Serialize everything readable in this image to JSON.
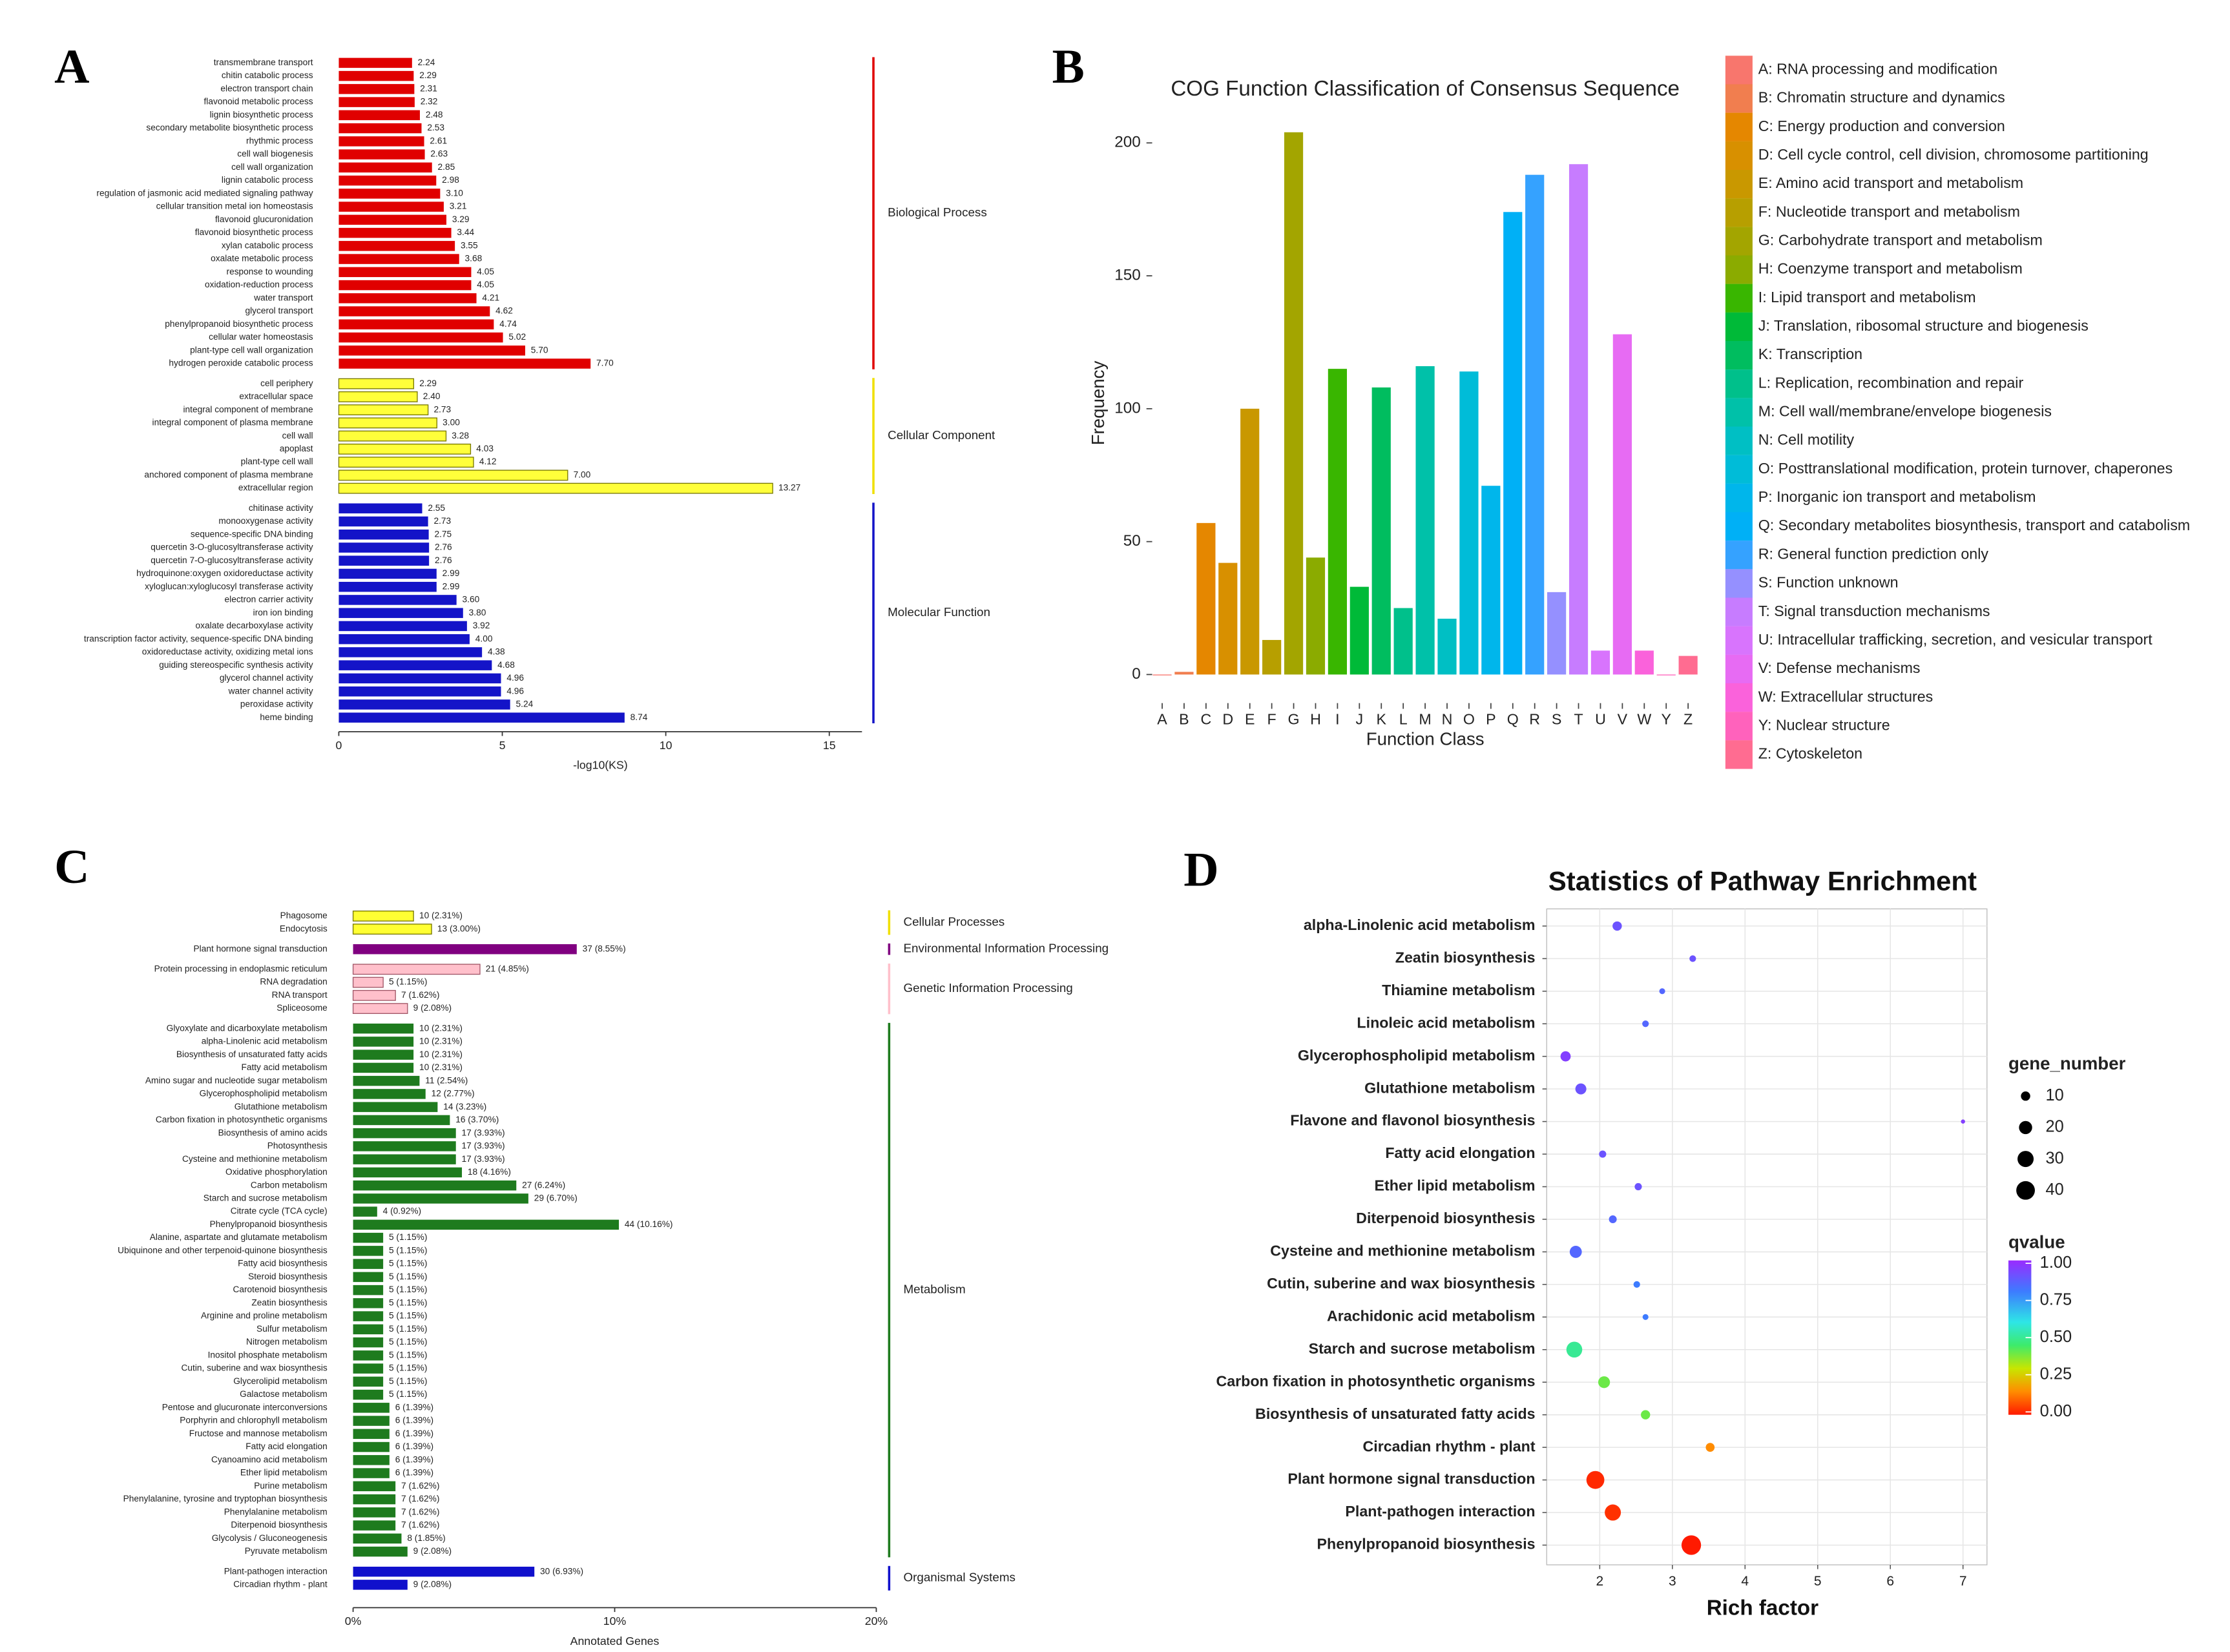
{
  "chart_data": [
    {
      "type": "hbar",
      "panel_label": "A",
      "xlabel": "-log10(KS)",
      "xlim": [
        0,
        16
      ],
      "xticks": [
        0,
        5,
        10,
        15
      ],
      "series": [
        {
          "name": "Biological Process",
          "color": "#E00000",
          "categories": [
            "transmembrane transport",
            "chitin catabolic process",
            "electron transport chain",
            "flavonoid metabolic process",
            "lignin biosynthetic process",
            "secondary metabolite biosynthetic process",
            "rhythmic process",
            "cell wall biogenesis",
            "cell wall organization",
            "lignin catabolic process",
            "regulation of jasmonic acid mediated signaling pathway",
            "cellular transition metal ion homeostasis",
            "flavonoid glucuronidation",
            "flavonoid biosynthetic process",
            "xylan catabolic process",
            "oxalate metabolic process",
            "response to wounding",
            "oxidation-reduction process",
            "water transport",
            "glycerol transport",
            "phenylpropanoid biosynthetic process",
            "cellular water homeostasis",
            "plant-type cell wall organization",
            "hydrogen peroxide catabolic process"
          ],
          "values": [
            2.24,
            2.29,
            2.31,
            2.32,
            2.48,
            2.53,
            2.61,
            2.63,
            2.85,
            2.98,
            3.1,
            3.21,
            3.29,
            3.44,
            3.55,
            3.68,
            4.05,
            4.05,
            4.21,
            4.62,
            4.74,
            5.02,
            5.7,
            7.7
          ],
          "value_labels": [
            "2.24",
            "2.29",
            "2.31",
            "2.32",
            "2.48",
            "2.53",
            "2.61",
            "2.63",
            "2.85",
            "2.98",
            "3.10",
            "3.21",
            "3.29",
            "3.44",
            "3.55",
            "3.68",
            "4.05",
            "4.05",
            "4.21",
            "4.62",
            "4.74",
            "5.02",
            "5.70",
            "7.70"
          ]
        },
        {
          "name": "Cellular Component",
          "color": "#FFFF3A",
          "edgecolor": "#777700",
          "categories": [
            "cell periphery",
            "extracellular space",
            "integral component of membrane",
            "integral component of plasma membrane",
            "cell wall",
            "apoplast",
            "plant-type cell wall",
            "anchored component of plasma membrane",
            "extracellular region"
          ],
          "values": [
            2.29,
            2.4,
            2.73,
            3.0,
            3.28,
            4.03,
            4.12,
            7.0,
            13.27
          ],
          "value_labels": [
            "2.29",
            "2.40",
            "2.73",
            "3.00",
            "3.28",
            "4.03",
            "4.12",
            "7.00",
            "13.27"
          ]
        },
        {
          "name": "Molecular Function",
          "color": "#1414C8",
          "categories": [
            "chitinase activity",
            "monooxygenase activity",
            "sequence-specific DNA binding",
            "quercetin 3-O-glucosyltransferase activity",
            "quercetin 7-O-glucosyltransferase activity",
            "hydroquinone:oxygen oxidoreductase activity",
            "xyloglucan:xyloglucosyl transferase activity",
            "electron carrier activity",
            "iron ion binding",
            "oxalate decarboxylase activity",
            "transcription factor activity, sequence-specific DNA binding",
            "oxidoreductase activity, oxidizing metal ions",
            "guiding stereospecific synthesis activity",
            "glycerol channel activity",
            "water channel activity",
            "peroxidase activity",
            "heme binding"
          ],
          "values": [
            2.55,
            2.73,
            2.75,
            2.76,
            2.76,
            2.99,
            2.99,
            3.6,
            3.8,
            3.92,
            4.0,
            4.38,
            4.68,
            4.96,
            4.96,
            5.24,
            8.74
          ],
          "value_labels": [
            "2.55",
            "2.73",
            "2.75",
            "2.76",
            "2.76",
            "2.99",
            "2.99",
            "3.60",
            "3.80",
            "3.92",
            "4.00",
            "4.38",
            "4.68",
            "4.96",
            "4.96",
            "5.24",
            "8.74"
          ]
        }
      ]
    },
    {
      "type": "bar",
      "panel_label": "B",
      "title": "COG Function Classification of Consensus Sequence",
      "xlabel": "Function Class",
      "ylabel": "Frequency",
      "categories": [
        "A",
        "B",
        "C",
        "D",
        "E",
        "F",
        "G",
        "H",
        "I",
        "J",
        "K",
        "L",
        "M",
        "N",
        "O",
        "P",
        "Q",
        "R",
        "S",
        "T",
        "U",
        "V",
        "W",
        "Y",
        "Z"
      ],
      "values": [
        0,
        1,
        57,
        42,
        100,
        13,
        204,
        44,
        115,
        33,
        108,
        25,
        116,
        21,
        114,
        71,
        174,
        188,
        31,
        192,
        9,
        128,
        9,
        0,
        7
      ],
      "colors": [
        "#F8766D",
        "#F17E4F",
        "#E58700",
        "#D89000",
        "#C99800",
        "#B79F00",
        "#A3A500",
        "#8BAB00",
        "#39B600",
        "#00BA38",
        "#00BD5F",
        "#00C08B",
        "#00C1A9",
        "#00BFC4",
        "#00BCD8",
        "#00B6EB",
        "#00B0F6",
        "#35A2FF",
        "#9590FF",
        "#C77CFF",
        "#D874FD",
        "#E76BF3",
        "#FA62DB",
        "#FF62BC",
        "#FF6C91"
      ],
      "legend": [
        "A: RNA processing and modification",
        "B: Chromatin structure and dynamics",
        "C: Energy production and conversion",
        "D: Cell cycle control, cell division, chromosome partitioning",
        "E: Amino acid transport and metabolism",
        "F: Nucleotide transport and metabolism",
        "G: Carbohydrate transport and metabolism",
        "H: Coenzyme transport and metabolism",
        "I: Lipid transport and metabolism",
        "J: Translation, ribosomal structure and biogenesis",
        "K: Transcription",
        "L: Replication, recombination and repair",
        "M: Cell wall/membrane/envelope biogenesis",
        "N: Cell motility",
        "O: Posttranslational modification, protein turnover, chaperones",
        "P: Inorganic ion transport and metabolism",
        "Q: Secondary metabolites biosynthesis, transport and catabolism",
        "R: General function prediction only",
        "S: Function unknown",
        "T: Signal transduction mechanisms",
        "U: Intracellular trafficking, secretion, and vesicular transport",
        "V: Defense mechanisms",
        "W: Extracellular structures",
        "Y: Nuclear structure",
        "Z: Cytoskeleton"
      ],
      "ylim": [
        -10,
        215
      ],
      "yticks": [
        0,
        50,
        100,
        150,
        200
      ]
    },
    {
      "type": "hbar",
      "panel_label": "C",
      "xlabel": "Annotated Genes",
      "xlim": [
        0,
        20
      ],
      "xticks": [
        {
          "value": 0,
          "label": "0%"
        },
        {
          "value": 10,
          "label": "10%"
        },
        {
          "value": 20,
          "label": "20%"
        }
      ],
      "series": [
        {
          "name": "Cellular Processes",
          "color": "#FFFF33",
          "edgecolor": "#777700",
          "categories": [
            "Phagosome",
            "Endocytosis"
          ],
          "values": [
            2.31,
            3.0
          ],
          "value_labels": [
            "10 (2.31%)",
            "13 (3.00%)"
          ]
        },
        {
          "name": "Environmental Information Processing",
          "color": "#800080",
          "categories": [
            "Plant hormone signal transduction"
          ],
          "values": [
            8.55
          ],
          "value_labels": [
            "37 (8.55%)"
          ]
        },
        {
          "name": "Genetic Information Processing",
          "color": "#FFC0CB",
          "edgecolor": "#A05566",
          "categories": [
            "Protein processing in endoplasmic reticulum",
            "RNA degradation",
            "RNA transport",
            "Spliceosome"
          ],
          "values": [
            4.85,
            1.15,
            1.62,
            2.08
          ],
          "value_labels": [
            "21 (4.85%)",
            "5 (1.15%)",
            "7 (1.62%)",
            "9 (2.08%)"
          ]
        },
        {
          "name": "Metabolism",
          "color": "#1E7B1E",
          "categories": [
            "Glyoxylate and dicarboxylate metabolism",
            "alpha-Linolenic acid metabolism",
            "Biosynthesis of unsaturated fatty acids",
            "Fatty acid metabolism",
            "Amino sugar and nucleotide sugar metabolism",
            "Glycerophospholipid metabolism",
            "Glutathione metabolism",
            "Carbon fixation in photosynthetic organisms",
            "Biosynthesis of amino acids",
            "Photosynthesis",
            "Cysteine and methionine metabolism",
            "Oxidative phosphorylation",
            "Carbon metabolism",
            "Starch and sucrose metabolism",
            "Citrate cycle (TCA cycle)",
            "Phenylpropanoid biosynthesis",
            "Alanine, aspartate and glutamate metabolism",
            "Ubiquinone and other terpenoid-quinone biosynthesis",
            "Fatty acid biosynthesis",
            "Steroid biosynthesis",
            "Carotenoid biosynthesis",
            "Zeatin biosynthesis",
            "Arginine and proline metabolism",
            "Sulfur metabolism",
            "Nitrogen metabolism",
            "Inositol phosphate metabolism",
            "Cutin, suberine and wax biosynthesis",
            "Glycerolipid metabolism",
            "Galactose metabolism",
            "Pentose and glucuronate interconversions",
            "Porphyrin and chlorophyll metabolism",
            "Fructose and mannose metabolism",
            "Fatty acid elongation",
            "Cyanoamino acid metabolism",
            "Ether lipid metabolism",
            "Purine metabolism",
            "Phenylalanine, tyrosine and tryptophan biosynthesis",
            "Phenylalanine metabolism",
            "Diterpenoid biosynthesis",
            "Glycolysis / Gluconeogenesis",
            "Pyruvate metabolism"
          ],
          "values": [
            2.31,
            2.31,
            2.31,
            2.31,
            2.54,
            2.77,
            3.23,
            3.7,
            3.93,
            3.93,
            3.93,
            4.16,
            6.24,
            6.7,
            0.92,
            10.16,
            1.15,
            1.15,
            1.15,
            1.15,
            1.15,
            1.15,
            1.15,
            1.15,
            1.15,
            1.15,
            1.15,
            1.15,
            1.15,
            1.39,
            1.39,
            1.39,
            1.39,
            1.39,
            1.39,
            1.62,
            1.62,
            1.62,
            1.62,
            1.85,
            2.08
          ],
          "value_labels": [
            "10 (2.31%)",
            "10 (2.31%)",
            "10 (2.31%)",
            "10 (2.31%)",
            "11 (2.54%)",
            "12 (2.77%)",
            "14 (3.23%)",
            "16 (3.70%)",
            "17 (3.93%)",
            "17 (3.93%)",
            "17 (3.93%)",
            "18 (4.16%)",
            "27 (6.24%)",
            "29 (6.70%)",
            "4 (0.92%)",
            "44 (10.16%)",
            "5 (1.15%)",
            "5 (1.15%)",
            "5 (1.15%)",
            "5 (1.15%)",
            "5 (1.15%)",
            "5 (1.15%)",
            "5 (1.15%)",
            "5 (1.15%)",
            "5 (1.15%)",
            "5 (1.15%)",
            "5 (1.15%)",
            "5 (1.15%)",
            "5 (1.15%)",
            "6 (1.39%)",
            "6 (1.39%)",
            "6 (1.39%)",
            "6 (1.39%)",
            "6 (1.39%)",
            "6 (1.39%)",
            "7 (1.62%)",
            "7 (1.62%)",
            "7 (1.62%)",
            "7 (1.62%)",
            "8 (1.85%)",
            "9 (2.08%)"
          ]
        },
        {
          "name": "Organismal Systems",
          "color": "#1010CC",
          "categories": [
            "Plant-pathogen interaction",
            "Circadian rhythm - plant"
          ],
          "values": [
            6.93,
            2.08
          ],
          "value_labels": [
            "30 (6.93%)",
            "9 (2.08%)"
          ]
        }
      ]
    },
    {
      "type": "bubble",
      "panel_label": "D",
      "title": "Statistics of Pathway Enrichment",
      "xlabel": "Rich factor",
      "categories": [
        "alpha-Linolenic acid metabolism",
        "Zeatin biosynthesis",
        "Thiamine metabolism",
        "Linoleic acid metabolism",
        "Glycerophospholipid metabolism",
        "Glutathione metabolism",
        "Flavone and flavonol biosynthesis",
        "Fatty acid elongation",
        "Ether lipid metabolism",
        "Diterpenoid biosynthesis",
        "Cysteine and methionine metabolism",
        "Cutin, suberine and wax biosynthesis",
        "Arachidonic acid metabolism",
        "Starch and sucrose metabolism",
        "Carbon fixation in photosynthetic organisms",
        "Biosynthesis of unsaturated fatty acids",
        "Circadian rhythm - plant",
        "Plant hormone signal transduction",
        "Plant-pathogen interaction",
        "Phenylpropanoid biosynthesis"
      ],
      "values": [
        2.24,
        3.28,
        2.86,
        2.63,
        1.53,
        1.74,
        7.0,
        2.04,
        2.53,
        2.18,
        1.67,
        2.51,
        2.63,
        1.65,
        2.06,
        2.63,
        3.52,
        1.94,
        2.18,
        3.26
      ],
      "sizes": [
        10,
        5,
        4,
        5,
        12,
        14,
        2,
        6,
        6,
        7,
        17,
        5,
        4,
        29,
        16,
        10,
        9,
        37,
        30,
        44
      ],
      "qvalues": [
        0.9,
        0.9,
        0.85,
        0.85,
        0.95,
        0.9,
        0.95,
        0.9,
        0.9,
        0.85,
        0.85,
        0.8,
        0.8,
        0.5,
        0.4,
        0.4,
        0.15,
        0.02,
        0.03,
        0.0
      ],
      "xlim": [
        1.27,
        7.33
      ],
      "xticks": [
        2,
        3,
        4,
        5,
        6,
        7
      ],
      "grid": true,
      "size_legend": {
        "title": "gene_number",
        "values": [
          10,
          20,
          30,
          40
        ]
      },
      "color_legend": {
        "title": "qvalue",
        "lim": [
          0,
          1
        ],
        "ticks": [
          {
            "value": 1,
            "label": "1.00"
          },
          {
            "value": 0.75,
            "label": "0.75"
          },
          {
            "value": 0.5,
            "label": "0.50"
          },
          {
            "value": 0.25,
            "label": "0.25"
          },
          {
            "value": 0,
            "label": "0.00"
          }
        ],
        "stops": [
          [
            0,
            "#FF1A00"
          ],
          [
            0.15,
            "#FF8C00"
          ],
          [
            0.3,
            "#C8E600"
          ],
          [
            0.45,
            "#3DEB6B"
          ],
          [
            0.6,
            "#2EE6E6"
          ],
          [
            0.8,
            "#3D7BFF"
          ],
          [
            1,
            "#9A2BFF"
          ]
        ]
      }
    }
  ]
}
